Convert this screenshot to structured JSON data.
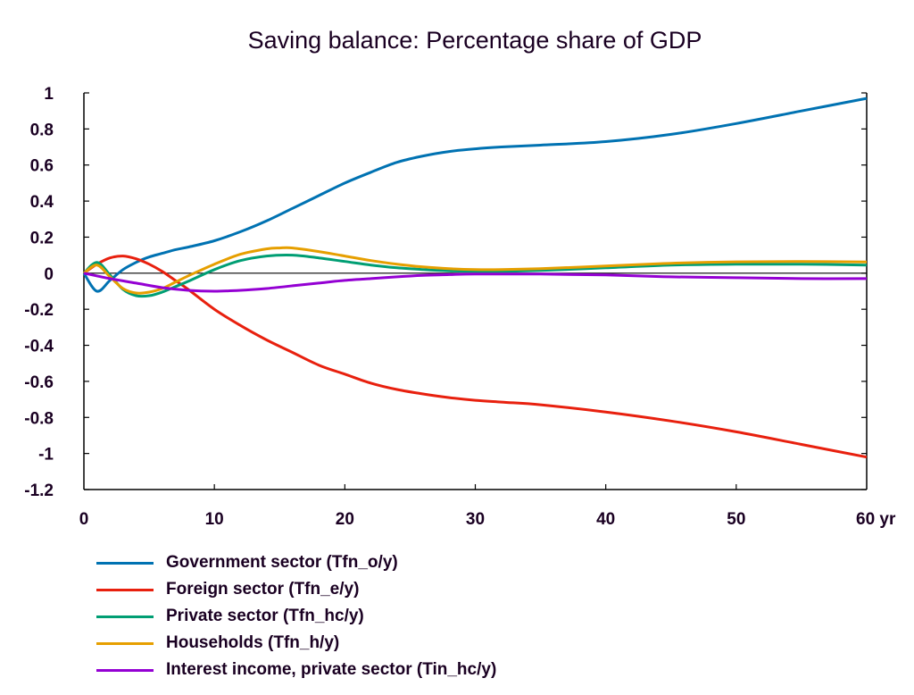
{
  "chart_data": {
    "type": "line",
    "title": "Saving balance: Percentage share of GDP",
    "xlabel": "",
    "ylabel": "",
    "x_unit_label": "yr",
    "xlim": [
      0,
      60
    ],
    "ylim": [
      -1.2,
      1
    ],
    "xticks": [
      0,
      10,
      20,
      30,
      40,
      50,
      60
    ],
    "xtick_labels": [
      "0",
      "10",
      "20",
      "30",
      "40",
      "50",
      "60 yr"
    ],
    "yticks": [
      1,
      0.8,
      0.6,
      0.4,
      0.2,
      0,
      -0.2,
      -0.4,
      -0.6,
      -0.8,
      -1,
      -1.2
    ],
    "ytick_labels": [
      "1",
      "0.8",
      "0.6",
      "0.4",
      "0.2",
      "0",
      "-0.2",
      "-0.4",
      "-0.6",
      "-0.8",
      "-1",
      "-1.2"
    ],
    "grid": false,
    "zero_line": true,
    "legend_position": "bottom-left",
    "series": [
      {
        "name": "Government sector (Tfn_o/y)",
        "color": "#0072b2",
        "x": [
          0,
          1,
          2,
          3,
          4,
          5,
          6,
          7,
          8,
          10,
          12,
          14,
          16,
          18,
          20,
          22,
          24,
          26,
          28,
          30,
          32,
          35,
          40,
          45,
          50,
          55,
          60
        ],
        "y": [
          0,
          -0.1,
          -0.04,
          0.02,
          0.06,
          0.09,
          0.11,
          0.13,
          0.145,
          0.18,
          0.23,
          0.29,
          0.36,
          0.43,
          0.5,
          0.56,
          0.615,
          0.65,
          0.675,
          0.69,
          0.7,
          0.71,
          0.73,
          0.77,
          0.83,
          0.9,
          0.97
        ]
      },
      {
        "name": "Foreign sector (Tfn_e/y)",
        "color": "#e8200e",
        "x": [
          0,
          1,
          2,
          3,
          4,
          5,
          6,
          7,
          8,
          10,
          12,
          14,
          16,
          18,
          20,
          22,
          24,
          26,
          28,
          30,
          32,
          35,
          40,
          45,
          50,
          55,
          60
        ],
        "y": [
          0,
          0.05,
          0.085,
          0.095,
          0.08,
          0.05,
          0.01,
          -0.04,
          -0.09,
          -0.2,
          -0.29,
          -0.37,
          -0.44,
          -0.51,
          -0.56,
          -0.61,
          -0.645,
          -0.67,
          -0.69,
          -0.705,
          -0.715,
          -0.73,
          -0.77,
          -0.82,
          -0.88,
          -0.95,
          -1.02
        ]
      },
      {
        "name": "Private sector (Tfn_hc/y)",
        "color": "#009e73",
        "x": [
          0,
          1,
          2,
          3,
          4,
          5,
          6,
          7,
          8,
          10,
          12,
          14,
          16,
          18,
          20,
          22,
          24,
          26,
          28,
          30,
          32,
          35,
          40,
          45,
          50,
          55,
          60
        ],
        "y": [
          0,
          0.06,
          -0.01,
          -0.09,
          -0.125,
          -0.125,
          -0.105,
          -0.075,
          -0.045,
          0.02,
          0.07,
          0.095,
          0.1,
          0.085,
          0.065,
          0.045,
          0.03,
          0.02,
          0.013,
          0.01,
          0.01,
          0.015,
          0.03,
          0.045,
          0.05,
          0.05,
          0.045
        ]
      },
      {
        "name": "Households (Tfn_h/y)",
        "color": "#e69f00",
        "x": [
          0,
          1,
          2,
          3,
          4,
          5,
          6,
          7,
          8,
          10,
          12,
          14,
          15,
          16,
          18,
          20,
          22,
          24,
          26,
          28,
          30,
          32,
          35,
          40,
          45,
          50,
          55,
          60
        ],
        "y": [
          0,
          0.045,
          -0.02,
          -0.085,
          -0.11,
          -0.105,
          -0.085,
          -0.05,
          -0.015,
          0.05,
          0.105,
          0.135,
          0.14,
          0.14,
          0.12,
          0.095,
          0.07,
          0.05,
          0.035,
          0.025,
          0.02,
          0.02,
          0.025,
          0.04,
          0.055,
          0.063,
          0.065,
          0.062
        ]
      },
      {
        "name": "Interest income, private sector (Tin_hc/y)",
        "color": "#9400d3",
        "x": [
          0,
          2,
          4,
          6,
          8,
          10,
          12,
          14,
          16,
          18,
          20,
          22,
          24,
          26,
          28,
          30,
          35,
          40,
          45,
          50,
          55,
          60
        ],
        "y": [
          0,
          -0.03,
          -0.055,
          -0.08,
          -0.095,
          -0.1,
          -0.095,
          -0.085,
          -0.07,
          -0.055,
          -0.04,
          -0.03,
          -0.02,
          -0.012,
          -0.008,
          -0.005,
          -0.005,
          -0.01,
          -0.02,
          -0.025,
          -0.03,
          -0.03
        ]
      }
    ]
  }
}
